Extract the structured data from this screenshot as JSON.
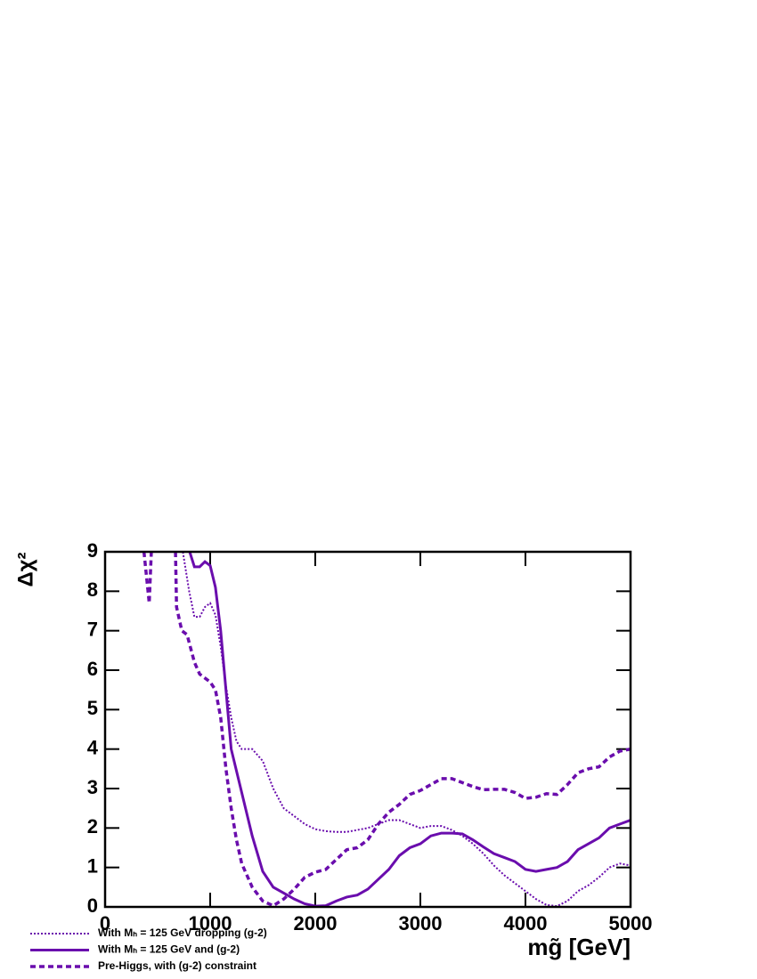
{
  "chart_data": {
    "type": "line",
    "y_label": "Δχ²",
    "x_label": "mg̃ [GeV]",
    "xlim": [
      0,
      5000
    ],
    "xticks": [
      0,
      1000,
      2000,
      3000,
      4000,
      5000
    ],
    "ylim": [
      0,
      9
    ],
    "yticks": [
      0,
      1,
      2,
      3,
      4,
      5,
      6,
      7,
      8,
      9
    ],
    "legend": "bottom-left",
    "series": [
      {
        "name": "With Mₕ = 125 GeV dropping (g-2)",
        "color": "#6a0dad",
        "style": "dotted",
        "x": [
          740,
          800,
          850,
          900,
          950,
          1000,
          1050,
          1100,
          1150,
          1200,
          1250,
          1300,
          1400,
          1500,
          1600,
          1700,
          1800,
          1900,
          2000,
          2100,
          2200,
          2300,
          2400,
          2500,
          2600,
          2700,
          2800,
          2900,
          3000,
          3100,
          3200,
          3300,
          3400,
          3500,
          3600,
          3700,
          3800,
          3900,
          4000,
          4100,
          4200,
          4300,
          4400,
          4500,
          4600,
          4700,
          4800,
          4900,
          5000
        ],
        "values": [
          9,
          8.0,
          7.35,
          7.35,
          7.6,
          7.7,
          7.4,
          6.6,
          5.6,
          4.8,
          4.2,
          4.0,
          4.0,
          3.7,
          3.0,
          2.5,
          2.3,
          2.1,
          1.97,
          1.92,
          1.9,
          1.9,
          1.95,
          2.0,
          2.1,
          2.2,
          2.2,
          2.1,
          2.0,
          2.05,
          2.05,
          1.95,
          1.8,
          1.6,
          1.35,
          1.05,
          0.8,
          0.6,
          0.4,
          0.2,
          0.05,
          0.02,
          0.15,
          0.4,
          0.55,
          0.75,
          1.0,
          1.1,
          1.05
        ]
      },
      {
        "name": "With Mₕ = 125 GeV and (g-2)",
        "color": "#6a0dad",
        "style": "solid",
        "x": [
          805,
          850,
          900,
          950,
          1000,
          1050,
          1100,
          1150,
          1200,
          1300,
          1400,
          1500,
          1600,
          1700,
          1800,
          1900,
          2000,
          2100,
          2200,
          2300,
          2400,
          2500,
          2600,
          2700,
          2800,
          2900,
          3000,
          3100,
          3200,
          3300,
          3400,
          3500,
          3600,
          3700,
          3800,
          3900,
          4000,
          4100,
          4200,
          4300,
          4400,
          4500,
          4600,
          4700,
          4800,
          4900,
          5000
        ],
        "values": [
          9,
          8.62,
          8.62,
          8.75,
          8.65,
          8.1,
          7.0,
          5.5,
          4.0,
          2.9,
          1.8,
          0.9,
          0.5,
          0.35,
          0.2,
          0.08,
          0.02,
          0.03,
          0.15,
          0.25,
          0.3,
          0.45,
          0.7,
          0.95,
          1.3,
          1.5,
          1.6,
          1.8,
          1.87,
          1.87,
          1.85,
          1.7,
          1.52,
          1.35,
          1.25,
          1.15,
          0.95,
          0.9,
          0.95,
          1.0,
          1.15,
          1.45,
          1.6,
          1.75,
          2.0,
          2.1,
          2.2
        ]
      },
      {
        "name": "Pre-Higgs, with (g-2) constraint",
        "color": "#6a0dad",
        "style": "dashed",
        "x": [
          370,
          420,
          440,
          null,
          670,
          680,
          730,
          780,
          850,
          900,
          1000,
          1050,
          1100,
          1150,
          1200,
          1250,
          1300,
          1400,
          1500,
          1600,
          1700,
          1800,
          1900,
          2000,
          2100,
          2200,
          2300,
          2400,
          2500,
          2600,
          2700,
          2800,
          2900,
          3000,
          3100,
          3200,
          3300,
          3400,
          3500,
          3600,
          3700,
          3800,
          3900,
          4000,
          4100,
          4200,
          4300,
          4400,
          4500,
          4600,
          4700,
          4800,
          4900,
          5000
        ],
        "values": [
          9,
          7.7,
          9,
          null,
          9,
          7.6,
          7.0,
          6.9,
          6.2,
          5.9,
          5.7,
          5.5,
          4.8,
          3.5,
          2.5,
          1.7,
          1.1,
          0.5,
          0.15,
          0.03,
          0.2,
          0.45,
          0.75,
          0.88,
          0.95,
          1.2,
          1.45,
          1.5,
          1.7,
          2.1,
          2.4,
          2.6,
          2.85,
          2.95,
          3.1,
          3.25,
          3.25,
          3.15,
          3.05,
          2.97,
          2.98,
          2.98,
          2.9,
          2.75,
          2.78,
          2.87,
          2.85,
          3.1,
          3.4,
          3.5,
          3.55,
          3.8,
          3.95,
          4.0
        ]
      }
    ]
  }
}
